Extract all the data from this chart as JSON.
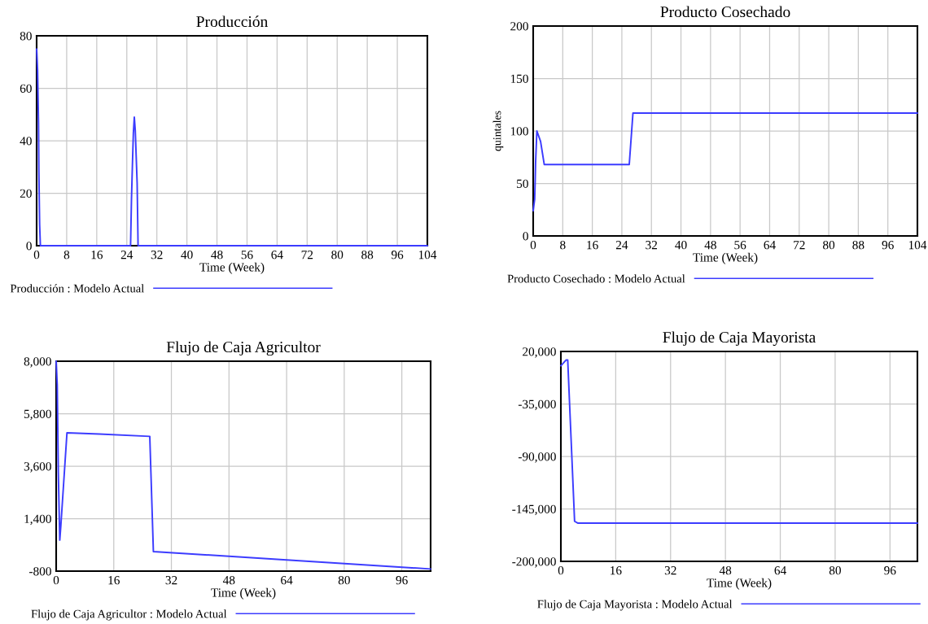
{
  "chart_data": [
    {
      "type": "line",
      "title": "Producción",
      "xlabel": "Time (Week)",
      "xlim": [
        0,
        104
      ],
      "xticks": [
        0,
        8,
        16,
        24,
        32,
        40,
        48,
        56,
        64,
        72,
        80,
        88,
        96,
        104
      ],
      "ylim": [
        0,
        80
      ],
      "yticks": [
        0,
        20,
        40,
        60,
        80
      ],
      "grid": true,
      "legend": "bottom",
      "x": [
        0,
        0.25,
        0.5,
        0.6,
        0.8,
        1,
        25,
        25.25,
        25.5,
        25.75,
        26,
        26.25,
        26.5,
        26.75,
        27,
        104
      ],
      "series": [
        {
          "name": "Producción : Modelo Actual",
          "color": "#3c3cff",
          "values": [
            75,
            67,
            47,
            28,
            8,
            0,
            0,
            18,
            31,
            43,
            49,
            44,
            34,
            24,
            0,
            0
          ]
        }
      ]
    },
    {
      "type": "line",
      "title": "Producto Cosechado",
      "xlabel": "Time (Week)",
      "ylabel": "quintales",
      "xlim": [
        0,
        104
      ],
      "xticks": [
        0,
        8,
        16,
        24,
        32,
        40,
        48,
        56,
        64,
        72,
        80,
        88,
        96,
        104
      ],
      "ylim": [
        0,
        200
      ],
      "yticks": [
        0,
        50,
        100,
        150,
        200
      ],
      "grid": true,
      "legend": "bottom",
      "x": [
        0,
        0.4,
        0.55,
        0.65,
        1,
        2,
        3,
        26,
        27,
        104
      ],
      "series": [
        {
          "name": "Producto Cosechado : Modelo Actual",
          "color": "#3c3cff",
          "values": [
            24,
            35,
            54,
            70,
            100,
            90,
            68,
            68,
            117,
            117
          ]
        }
      ]
    },
    {
      "type": "line",
      "title": "Flujo de Caja Agricultor",
      "xlabel": "Time (Week)",
      "xlim": [
        0,
        104
      ],
      "xticks": [
        0,
        16,
        32,
        48,
        64,
        80,
        96
      ],
      "ylim": [
        -800,
        8000
      ],
      "yticks": [
        {
          "value": -800,
          "label": "-800"
        },
        {
          "value": 1400,
          "label": "1,400"
        },
        {
          "value": 3600,
          "label": "3,600"
        },
        {
          "value": 5800,
          "label": "5,800"
        },
        {
          "value": 8000,
          "label": "8,000"
        }
      ],
      "grid": true,
      "legend": "bottom",
      "x": [
        0,
        0.3,
        0.6,
        1,
        1.3,
        3,
        12,
        26,
        27,
        64,
        104
      ],
      "series": [
        {
          "name": "Flujo de Caja Agricultor : Modelo Actual",
          "color": "#3c3cff",
          "values": [
            8000,
            7000,
            3300,
            500,
            1100,
            5000,
            4950,
            4850,
            20,
            -330,
            -710
          ]
        }
      ]
    },
    {
      "type": "line",
      "title": "Flujo de Caja Mayorista",
      "xlabel": "Time (Week)",
      "xlim": [
        0,
        104
      ],
      "xticks": [
        0,
        16,
        32,
        48,
        64,
        80,
        96
      ],
      "ylim": [
        -200000,
        20000
      ],
      "yticks": [
        {
          "value": -200000,
          "label": "-200,000"
        },
        {
          "value": -145000,
          "label": "-145,000"
        },
        {
          "value": -90000,
          "label": "-90,000"
        },
        {
          "value": -35000,
          "label": "-35,000"
        },
        {
          "value": 20000,
          "label": "20,000"
        }
      ],
      "grid": true,
      "legend": "bottom",
      "x": [
        0,
        1.5,
        2,
        4,
        5,
        104
      ],
      "series": [
        {
          "name": "Flujo de Caja Mayorista : Modelo Actual",
          "color": "#3c3cff",
          "values": [
            5000,
            11000,
            11000,
            -158000,
            -160000,
            -160000
          ]
        }
      ]
    }
  ]
}
